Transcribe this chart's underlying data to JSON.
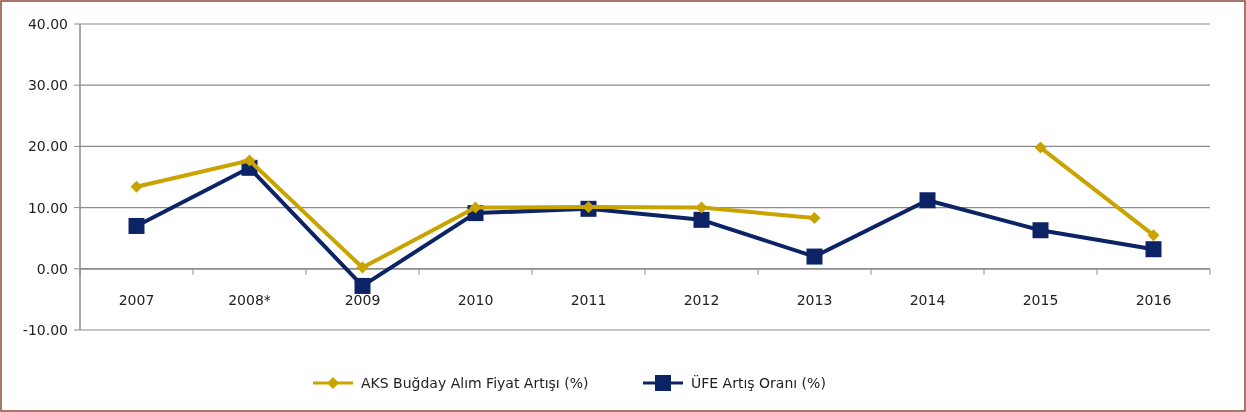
{
  "chart_data": {
    "type": "line",
    "categories": [
      "2007",
      "2008*",
      "2009",
      "2010",
      "2011",
      "2012",
      "2013",
      "2014",
      "2015",
      "2016"
    ],
    "series": [
      {
        "name": "AKS Buğday Alım Fiyat Artışı (%)",
        "color": "#c9a400",
        "marker": "diamond",
        "values": [
          13.4,
          17.7,
          0.2,
          10.0,
          10.1,
          10.0,
          8.3,
          null,
          19.8,
          5.5
        ]
      },
      {
        "name": "ÜFE Artış Oranı (%)",
        "color": "#0c2366",
        "marker": "square",
        "values": [
          7.0,
          16.5,
          -2.8,
          9.1,
          9.8,
          8.0,
          2.0,
          11.2,
          6.3,
          3.2
        ]
      }
    ],
    "ylim": [
      -10,
      40
    ],
    "yticks": [
      {
        "value": -10,
        "label": "-10.00"
      },
      {
        "value": 0,
        "label": "0.00"
      },
      {
        "value": 10,
        "label": "10.00"
      },
      {
        "value": 20,
        "label": "20.00"
      },
      {
        "value": 30,
        "label": "30.00"
      },
      {
        "value": 40,
        "label": "40.00"
      }
    ],
    "grid": "y",
    "legend": "bottom"
  }
}
